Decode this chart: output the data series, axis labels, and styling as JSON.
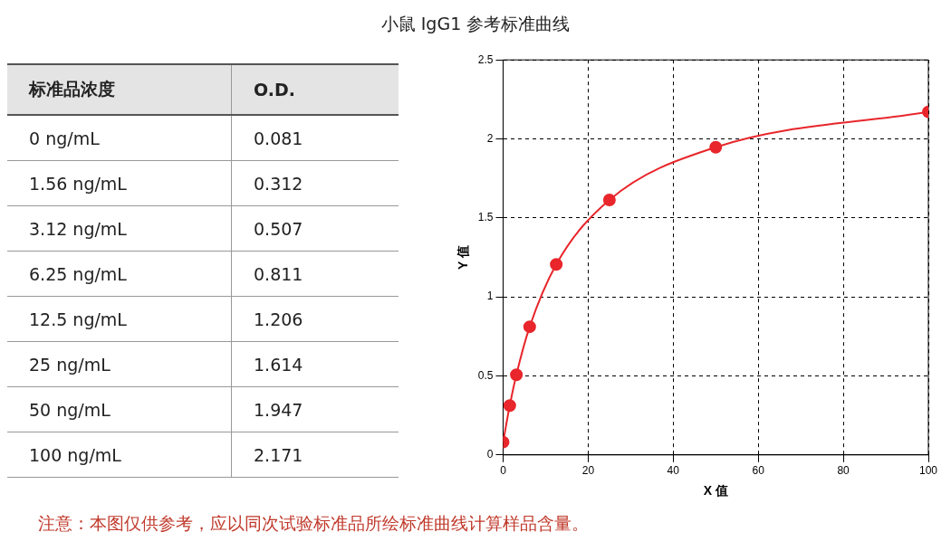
{
  "chart_data": [
    {
      "type": "other",
      "annotations": [
        "标准品浓度",
        "O.D.",
        "0 ng/mL",
        "0.081",
        "1.56 ng/mL",
        "0.312",
        "3.12 ng/mL",
        "0.507",
        "6.25 ng/mL",
        "0.811",
        "12.5 ng/mL",
        "1.206",
        "25 ng/mL",
        "1.614",
        "50 ng/mL",
        "1.947",
        "100 ng/mL",
        "2.171"
      ]
    },
    {
      "type": "line",
      "title": "小鼠 IgG1 参考标准曲线",
      "xlabel": "X 值",
      "ylabel": "Y 值",
      "x": [
        0,
        1.56,
        3.12,
        6.25,
        12.5,
        25,
        50,
        100
      ],
      "series": [
        {
          "color": "#e8262b",
          "values": [
            0.081,
            0.312,
            0.507,
            0.811,
            1.206,
            1.614,
            1.947,
            2.171
          ]
        }
      ],
      "xlim": [
        0,
        100
      ],
      "xticks": [
        0,
        20,
        40,
        60,
        80,
        100
      ],
      "ylim": [
        0,
        2.5
      ],
      "yticks": [
        0,
        0.5,
        1,
        1.5,
        2,
        2.5
      ],
      "grid": true,
      "legend": false,
      "marker": "circle",
      "line_style": "solid",
      "annotations": [
        "注意：本图仅供参考，应以同次试验标准品所绘标准曲线计算样品含量。"
      ]
    }
  ]
}
